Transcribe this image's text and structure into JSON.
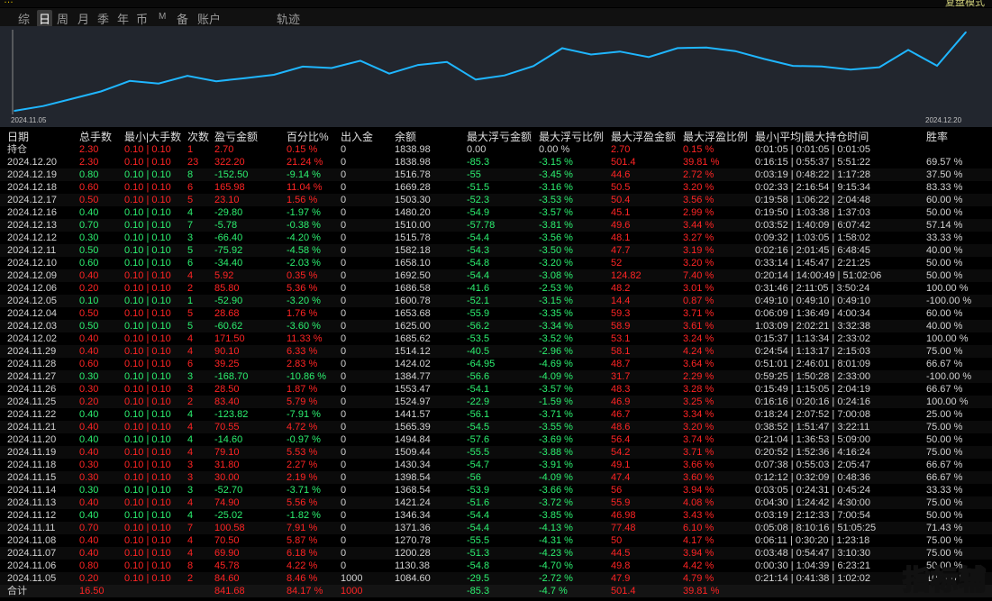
{
  "window": {
    "title": "…",
    "top_right": "复盘模式"
  },
  "tabs": [
    "综",
    "日",
    "周",
    "月",
    "季",
    "年",
    "币",
    "M",
    "备",
    "账户",
    "轨迹"
  ],
  "active_tab": "日",
  "colors": {
    "up": "#ff2424",
    "down": "#2cf070",
    "neutral": "#d2d2d2",
    "line": "#1fb6ff",
    "chart_bg": "#22262e"
  },
  "chart_data": {
    "type": "line",
    "x_start_label": "2024.11.05",
    "x_end_label": "2024.12.20",
    "x": [
      "2024.11.05",
      "2024.11.06",
      "2024.11.07",
      "2024.11.08",
      "2024.11.11",
      "2024.11.12",
      "2024.11.13",
      "2024.11.14",
      "2024.11.15",
      "2024.11.18",
      "2024.11.19",
      "2024.11.20",
      "2024.11.21",
      "2024.11.22",
      "2024.11.25",
      "2024.11.26",
      "2024.11.27",
      "2024.11.28",
      "2024.11.29",
      "2024.12.02",
      "2024.12.03",
      "2024.12.04",
      "2024.12.05",
      "2024.12.06",
      "2024.12.09",
      "2024.12.10",
      "2024.12.11",
      "2024.12.12",
      "2024.12.13",
      "2024.12.16",
      "2024.12.17",
      "2024.12.18",
      "2024.12.19",
      "2024.12.20"
    ],
    "values": [
      1084.6,
      1130.38,
      1200.28,
      1270.78,
      1371.36,
      1346.34,
      1421.24,
      1368.54,
      1398.54,
      1430.34,
      1509.44,
      1494.84,
      1565.39,
      1441.57,
      1524.97,
      1553.47,
      1384.77,
      1424.02,
      1514.12,
      1685.62,
      1625.0,
      1653.68,
      1600.78,
      1686.58,
      1692.5,
      1658.1,
      1582.18,
      1515.78,
      1510.0,
      1480.2,
      1503.3,
      1669.28,
      1516.78,
      1838.98
    ],
    "ylim": [
      1050,
      1880
    ]
  },
  "table": {
    "headers": [
      "日期",
      "总手数",
      "最小|大手数",
      "次数",
      "盈亏金额",
      "百分比%",
      "出入金",
      "余额",
      "最大浮亏金额",
      "最大浮亏比例",
      "最大浮盈金额",
      "最大浮盈比例",
      "最小|平均|最大持仓时间",
      "胜率"
    ],
    "position_row": [
      "持仓",
      "2.30",
      "0.10 | 0.10",
      "1",
      "2.70",
      "0.15 %",
      "0",
      "1838.98",
      "0.00",
      "0.00 %",
      "2.70",
      "0.15 %",
      "0:01:05 | 0:01:05 | 0:01:05",
      ""
    ],
    "rows": [
      [
        "2024.12.20",
        "2.30",
        "0.10 | 0.10",
        "23",
        "322.20",
        "21.24 %",
        "0",
        "1838.98",
        "-85.3",
        "-3.15 %",
        "501.4",
        "39.81 %",
        "0:16:15 | 0:55:37 | 5:51:22",
        "69.57 %"
      ],
      [
        "2024.12.19",
        "0.80",
        "0.10 | 0.10",
        "8",
        "-152.50",
        "-9.14 %",
        "0",
        "1516.78",
        "-55",
        "-3.45 %",
        "44.6",
        "2.72 %",
        "0:03:19 | 0:48:22 | 1:17:28",
        "37.50 %"
      ],
      [
        "2024.12.18",
        "0.60",
        "0.10 | 0.10",
        "6",
        "165.98",
        "11.04 %",
        "0",
        "1669.28",
        "-51.5",
        "-3.16 %",
        "50.5",
        "3.20 %",
        "0:02:33 | 2:16:54 | 9:15:34",
        "83.33 %"
      ],
      [
        "2024.12.17",
        "0.50",
        "0.10 | 0.10",
        "5",
        "23.10",
        "1.56 %",
        "0",
        "1503.30",
        "-52.3",
        "-3.53 %",
        "50.4",
        "3.56 %",
        "0:19:58 | 1:06:22 | 2:04:48",
        "60.00 %"
      ],
      [
        "2024.12.16",
        "0.40",
        "0.10 | 0.10",
        "4",
        "-29.80",
        "-1.97 %",
        "0",
        "1480.20",
        "-54.9",
        "-3.57 %",
        "45.1",
        "2.99 %",
        "0:19:50 | 1:03:38 | 1:37:03",
        "50.00 %"
      ],
      [
        "2024.12.13",
        "0.70",
        "0.10 | 0.10",
        "7",
        "-5.78",
        "-0.38 %",
        "0",
        "1510.00",
        "-57.78",
        "-3.81 %",
        "49.6",
        "3.44 %",
        "0:03:52 | 1:40:09 | 6:07:42",
        "57.14 %"
      ],
      [
        "2024.12.12",
        "0.30",
        "0.10 | 0.10",
        "3",
        "-66.40",
        "-4.20 %",
        "0",
        "1515.78",
        "-54.4",
        "-3.56 %",
        "48.1",
        "3.27 %",
        "0:09:32 | 1:03:05 | 1:58:02",
        "33.33 %"
      ],
      [
        "2024.12.11",
        "0.50",
        "0.10 | 0.10",
        "5",
        "-75.92",
        "-4.58 %",
        "0",
        "1582.18",
        "-54.3",
        "-3.50 %",
        "47.7",
        "3.19 %",
        "0:02:16 | 2:01:45 | 6:48:45",
        "40.00 %"
      ],
      [
        "2024.12.10",
        "0.60",
        "0.10 | 0.10",
        "6",
        "-34.40",
        "-2.03 %",
        "0",
        "1658.10",
        "-54.8",
        "-3.20 %",
        "52",
        "3.20 %",
        "0:33:14 | 1:45:47 | 2:21:25",
        "50.00 %"
      ],
      [
        "2024.12.09",
        "0.40",
        "0.10 | 0.10",
        "4",
        "5.92",
        "0.35 %",
        "0",
        "1692.50",
        "-54.4",
        "-3.08 %",
        "124.82",
        "7.40 %",
        "0:20:14 | 14:00:49 | 51:02:06",
        "50.00 %"
      ],
      [
        "2024.12.06",
        "0.20",
        "0.10 | 0.10",
        "2",
        "85.80",
        "5.36 %",
        "0",
        "1686.58",
        "-41.6",
        "-2.53 %",
        "48.2",
        "3.01 %",
        "0:31:46 | 2:11:05 | 3:50:24",
        "100.00 %"
      ],
      [
        "2024.12.05",
        "0.10",
        "0.10 | 0.10",
        "1",
        "-52.90",
        "-3.20 %",
        "0",
        "1600.78",
        "-52.1",
        "-3.15 %",
        "14.4",
        "0.87 %",
        "0:49:10 | 0:49:10 | 0:49:10",
        "-100.00 %"
      ],
      [
        "2024.12.04",
        "0.50",
        "0.10 | 0.10",
        "5",
        "28.68",
        "1.76 %",
        "0",
        "1653.68",
        "-55.9",
        "-3.35 %",
        "59.3",
        "3.71 %",
        "0:06:09 | 1:36:49 | 4:00:34",
        "60.00 %"
      ],
      [
        "2024.12.03",
        "0.50",
        "0.10 | 0.10",
        "5",
        "-60.62",
        "-3.60 %",
        "0",
        "1625.00",
        "-56.2",
        "-3.34 %",
        "58.9",
        "3.61 %",
        "1:03:09 | 2:02:21 | 3:32:38",
        "40.00 %"
      ],
      [
        "2024.12.02",
        "0.40",
        "0.10 | 0.10",
        "4",
        "171.50",
        "11.33 %",
        "0",
        "1685.62",
        "-53.5",
        "-3.52 %",
        "53.1",
        "3.24 %",
        "0:15:37 | 1:13:34 | 2:33:02",
        "100.00 %"
      ],
      [
        "2024.11.29",
        "0.40",
        "0.10 | 0.10",
        "4",
        "90.10",
        "6.33 %",
        "0",
        "1514.12",
        "-40.5",
        "-2.96 %",
        "58.1",
        "4.24 %",
        "0:24:54 | 1:13:17 | 2:15:03",
        "75.00 %"
      ],
      [
        "2024.11.28",
        "0.60",
        "0.10 | 0.10",
        "6",
        "39.25",
        "2.83 %",
        "0",
        "1424.02",
        "-64.95",
        "-4.69 %",
        "48.7",
        "3.64 %",
        "0:51:01 | 2:46:01 | 8:01:09",
        "66.67 %"
      ],
      [
        "2024.11.27",
        "0.30",
        "0.10 | 0.10",
        "3",
        "-168.70",
        "-10.86 %",
        "0",
        "1384.77",
        "-56.6",
        "-4.09 %",
        "31.7",
        "2.29 %",
        "0:59:25 | 1:50:28 | 2:33:00",
        "-100.00 %"
      ],
      [
        "2024.11.26",
        "0.30",
        "0.10 | 0.10",
        "3",
        "28.50",
        "1.87 %",
        "0",
        "1553.47",
        "-54.1",
        "-3.57 %",
        "48.3",
        "3.28 %",
        "0:15:49 | 1:15:05 | 2:04:19",
        "66.67 %"
      ],
      [
        "2024.11.25",
        "0.20",
        "0.10 | 0.10",
        "2",
        "83.40",
        "5.79 %",
        "0",
        "1524.97",
        "-22.9",
        "-1.59 %",
        "46.9",
        "3.25 %",
        "0:16:16 | 0:20:16 | 0:24:16",
        "100.00 %"
      ],
      [
        "2024.11.22",
        "0.40",
        "0.10 | 0.10",
        "4",
        "-123.82",
        "-7.91 %",
        "0",
        "1441.57",
        "-56.1",
        "-3.71 %",
        "46.7",
        "3.34 %",
        "0:18:24 | 2:07:52 | 7:00:08",
        "25.00 %"
      ],
      [
        "2024.11.21",
        "0.40",
        "0.10 | 0.10",
        "4",
        "70.55",
        "4.72 %",
        "0",
        "1565.39",
        "-54.5",
        "-3.55 %",
        "48.6",
        "3.20 %",
        "0:38:52 | 1:51:47 | 3:22:11",
        "75.00 %"
      ],
      [
        "2024.11.20",
        "0.40",
        "0.10 | 0.10",
        "4",
        "-14.60",
        "-0.97 %",
        "0",
        "1494.84",
        "-57.6",
        "-3.69 %",
        "56.4",
        "3.74 %",
        "0:21:04 | 1:36:53 | 5:09:00",
        "50.00 %"
      ],
      [
        "2024.11.19",
        "0.40",
        "0.10 | 0.10",
        "4",
        "79.10",
        "5.53 %",
        "0",
        "1509.44",
        "-55.5",
        "-3.88 %",
        "54.2",
        "3.71 %",
        "0:20:52 | 1:52:36 | 4:16:24",
        "75.00 %"
      ],
      [
        "2024.11.18",
        "0.30",
        "0.10 | 0.10",
        "3",
        "31.80",
        "2.27 %",
        "0",
        "1430.34",
        "-54.7",
        "-3.91 %",
        "49.1",
        "3.66 %",
        "0:07:38 | 0:55:03 | 2:05:47",
        "66.67 %"
      ],
      [
        "2024.11.15",
        "0.30",
        "0.10 | 0.10",
        "3",
        "30.00",
        "2.19 %",
        "0",
        "1398.54",
        "-56",
        "-4.09 %",
        "47.4",
        "3.60 %",
        "0:12:12 | 0:32:09 | 0:48:36",
        "66.67 %"
      ],
      [
        "2024.11.14",
        "0.30",
        "0.10 | 0.10",
        "3",
        "-52.70",
        "-3.71 %",
        "0",
        "1368.54",
        "-53.9",
        "-3.66 %",
        "56",
        "3.94 %",
        "0:03:05 | 0:24:31 | 0:45:24",
        "33.33 %"
      ],
      [
        "2024.11.13",
        "0.40",
        "0.10 | 0.10",
        "4",
        "74.90",
        "5.56 %",
        "0",
        "1421.24",
        "-51.6",
        "-3.72 %",
        "55.9",
        "4.08 %",
        "0:04:30 | 1:24:42 | 4:30:00",
        "75.00 %"
      ],
      [
        "2024.11.12",
        "0.40",
        "0.10 | 0.10",
        "4",
        "-25.02",
        "-1.82 %",
        "0",
        "1346.34",
        "-54.4",
        "-3.85 %",
        "46.98",
        "3.43 %",
        "0:03:19 | 2:12:33 | 7:00:54",
        "50.00 %"
      ],
      [
        "2024.11.11",
        "0.70",
        "0.10 | 0.10",
        "7",
        "100.58",
        "7.91 %",
        "0",
        "1371.36",
        "-54.4",
        "-4.13 %",
        "77.48",
        "6.10 %",
        "0:05:08 | 8:10:16 | 51:05:25",
        "71.43 %"
      ],
      [
        "2024.11.08",
        "0.40",
        "0.10 | 0.10",
        "4",
        "70.50",
        "5.87 %",
        "0",
        "1270.78",
        "-55.5",
        "-4.31 %",
        "50",
        "4.17 %",
        "0:06:11 | 0:30:20 | 1:23:18",
        "75.00 %"
      ],
      [
        "2024.11.07",
        "0.40",
        "0.10 | 0.10",
        "4",
        "69.90",
        "6.18 %",
        "0",
        "1200.28",
        "-51.3",
        "-4.23 %",
        "44.5",
        "3.94 %",
        "0:03:48 | 0:54:47 | 3:10:30",
        "75.00 %"
      ],
      [
        "2024.11.06",
        "0.80",
        "0.10 | 0.10",
        "8",
        "45.78",
        "4.22 %",
        "0",
        "1130.38",
        "-54.8",
        "-4.70 %",
        "49.8",
        "4.42 %",
        "0:00:30 | 1:04:39 | 6:23:21",
        "50.00 %"
      ],
      [
        "2024.11.05",
        "0.20",
        "0.10 | 0.10",
        "2",
        "84.60",
        "8.46 %",
        "1000",
        "1084.60",
        "-29.5",
        "-2.72 %",
        "47.9",
        "4.79 %",
        "0:21:14 | 0:41:38 | 1:02:02",
        "100.00 %"
      ]
    ],
    "total_row": [
      "合计",
      "16.50",
      "",
      "",
      "841.68",
      "84.17 %",
      "1000",
      "",
      "-85.3",
      "-4.7 %",
      "501.4",
      "39.81 %",
      "",
      ""
    ]
  },
  "watermark": "指标辅"
}
